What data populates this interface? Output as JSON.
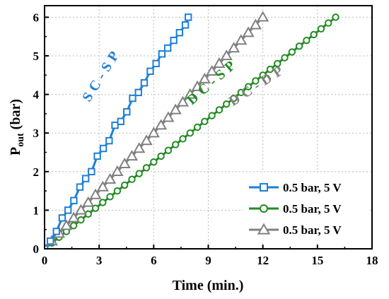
{
  "chart_data": {
    "type": "line",
    "xlabel": "Time (min.)",
    "ylabel": {
      "main": "P",
      "sub": "out",
      "unit": " (bar)"
    },
    "xlim": [
      0,
      18
    ],
    "ylim": [
      0,
      6.3
    ],
    "xticks": [
      0,
      3,
      6,
      9,
      12,
      15,
      18
    ],
    "yticks": [
      0,
      1,
      2,
      3,
      4,
      5,
      6
    ],
    "grid": true,
    "legend_position": "bottom-right",
    "series": [
      {
        "name": "0.5 bar, 5 V",
        "color": "#1E7FD6",
        "marker": "square",
        "annotation": "SC-SP",
        "x": [
          0,
          0.32,
          0.65,
          0.97,
          1.29,
          1.61,
          1.94,
          2.26,
          2.58,
          2.9,
          3.23,
          3.55,
          3.87,
          4.19,
          4.52,
          4.84,
          5.16,
          5.48,
          5.81,
          6.13,
          6.45,
          6.77,
          7.1,
          7.42,
          7.74,
          7.9
        ],
        "y": [
          0,
          0.2,
          0.45,
          0.8,
          1.0,
          1.25,
          1.6,
          1.82,
          2.0,
          2.4,
          2.6,
          2.8,
          3.2,
          3.3,
          3.55,
          3.9,
          4.05,
          4.3,
          4.6,
          4.8,
          5.05,
          5.2,
          5.4,
          5.6,
          5.8,
          6.0
        ]
      },
      {
        "name": "0.5 bar, 5 V",
        "color": "#228B22",
        "marker": "circle",
        "annotation": "DC-SP",
        "x": [
          0,
          0.4,
          0.8,
          1.2,
          1.6,
          2.0,
          2.4,
          2.8,
          3.2,
          3.6,
          4.0,
          4.4,
          4.8,
          5.2,
          5.6,
          6.0,
          6.4,
          6.8,
          7.2,
          7.6,
          8.0,
          8.4,
          8.8,
          9.2,
          9.6,
          10.0,
          10.4,
          10.8,
          11.2,
          11.6,
          12.0,
          12.4,
          12.8,
          13.2,
          13.6,
          14.0,
          14.4,
          14.8,
          15.2,
          15.6,
          16.0
        ],
        "y": [
          0,
          0.15,
          0.3,
          0.45,
          0.6,
          0.75,
          0.9,
          1.05,
          1.2,
          1.35,
          1.5,
          1.65,
          1.8,
          1.95,
          2.1,
          2.25,
          2.4,
          2.55,
          2.7,
          2.85,
          3.0,
          3.15,
          3.3,
          3.45,
          3.6,
          3.75,
          3.9,
          4.05,
          4.2,
          4.35,
          4.5,
          4.65,
          4.8,
          4.95,
          5.1,
          5.25,
          5.4,
          5.55,
          5.7,
          5.85,
          6.0
        ]
      },
      {
        "name": "0.5 bar, 5 V",
        "color": "#808080",
        "marker": "triangle",
        "annotation": "DC-DP",
        "x": [
          0,
          0.4,
          0.8,
          1.2,
          1.6,
          2.0,
          2.4,
          2.8,
          3.2,
          3.6,
          4.0,
          4.4,
          4.8,
          5.2,
          5.6,
          6.0,
          6.4,
          6.8,
          7.2,
          7.6,
          8.0,
          8.4,
          8.8,
          9.2,
          9.6,
          10.0,
          10.4,
          10.8,
          11.2,
          11.6,
          12.0
        ],
        "y": [
          0,
          0.2,
          0.4,
          0.6,
          0.8,
          1.0,
          1.2,
          1.4,
          1.6,
          1.8,
          2.0,
          2.2,
          2.4,
          2.6,
          2.8,
          3.0,
          3.2,
          3.4,
          3.6,
          3.8,
          4.0,
          4.2,
          4.4,
          4.6,
          4.8,
          5.0,
          5.2,
          5.4,
          5.6,
          5.8,
          6.0
        ]
      }
    ]
  }
}
